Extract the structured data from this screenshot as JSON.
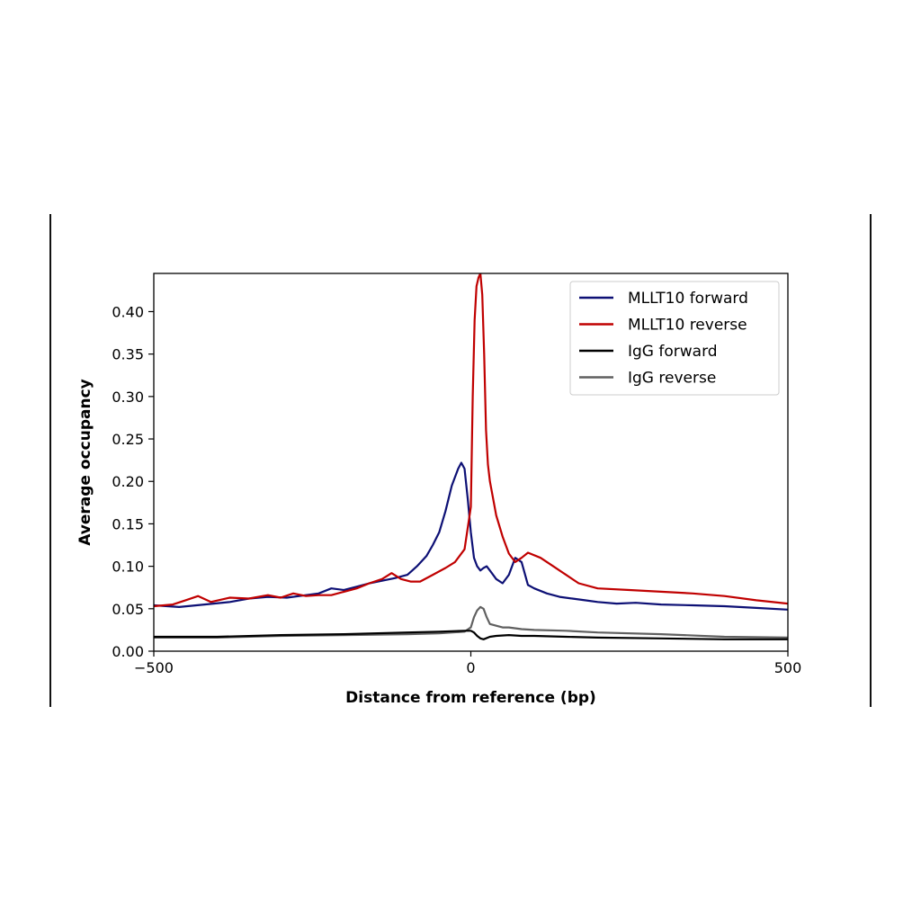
{
  "chart_data": {
    "type": "line",
    "title": "",
    "xlabel": "Distance from reference (bp)",
    "ylabel": "Average occupancy",
    "xlim": [
      -500,
      500
    ],
    "ylim": [
      0,
      0.445
    ],
    "x_ticks": [
      -500,
      0,
      500
    ],
    "x_tick_labels": [
      "−500",
      "0",
      "500"
    ],
    "y_ticks": [
      0.0,
      0.05,
      0.1,
      0.15,
      0.2,
      0.25,
      0.3,
      0.35,
      0.4
    ],
    "y_tick_labels": [
      "0.00",
      "0.05",
      "0.10",
      "0.15",
      "0.20",
      "0.25",
      "0.30",
      "0.35",
      "0.40"
    ],
    "grid": false,
    "legend_position": "top-right",
    "series": [
      {
        "name": "MLLT10 forward",
        "color": "#0d1075",
        "x": [
          -500,
          -460,
          -420,
          -380,
          -350,
          -320,
          -290,
          -260,
          -240,
          -220,
          -200,
          -180,
          -160,
          -140,
          -120,
          -100,
          -85,
          -70,
          -60,
          -50,
          -40,
          -30,
          -20,
          -15,
          -10,
          -5,
          0,
          5,
          10,
          15,
          20,
          25,
          30,
          40,
          50,
          60,
          70,
          80,
          90,
          100,
          120,
          140,
          160,
          180,
          200,
          230,
          260,
          300,
          350,
          400,
          450,
          500
        ],
        "y": [
          0.054,
          0.052,
          0.055,
          0.058,
          0.062,
          0.064,
          0.063,
          0.066,
          0.068,
          0.074,
          0.072,
          0.076,
          0.08,
          0.083,
          0.086,
          0.09,
          0.1,
          0.112,
          0.125,
          0.14,
          0.165,
          0.195,
          0.215,
          0.222,
          0.215,
          0.18,
          0.14,
          0.11,
          0.1,
          0.095,
          0.098,
          0.1,
          0.095,
          0.085,
          0.08,
          0.09,
          0.11,
          0.105,
          0.078,
          0.074,
          0.068,
          0.064,
          0.062,
          0.06,
          0.058,
          0.056,
          0.057,
          0.055,
          0.054,
          0.053,
          0.051,
          0.049
        ]
      },
      {
        "name": "MLLT10 reverse",
        "color": "#c00000",
        "x": [
          -500,
          -470,
          -450,
          -430,
          -410,
          -380,
          -350,
          -320,
          -300,
          -280,
          -260,
          -240,
          -220,
          -200,
          -180,
          -160,
          -140,
          -125,
          -110,
          -95,
          -80,
          -60,
          -40,
          -25,
          -10,
          0,
          3,
          6,
          9,
          12,
          15,
          18,
          21,
          24,
          27,
          30,
          35,
          40,
          50,
          60,
          70,
          80,
          90,
          110,
          130,
          150,
          170,
          200,
          250,
          300,
          350,
          400,
          450,
          500
        ],
        "y": [
          0.053,
          0.055,
          0.06,
          0.065,
          0.058,
          0.063,
          0.062,
          0.066,
          0.063,
          0.068,
          0.065,
          0.066,
          0.066,
          0.07,
          0.074,
          0.08,
          0.085,
          0.092,
          0.085,
          0.082,
          0.082,
          0.09,
          0.098,
          0.105,
          0.12,
          0.17,
          0.3,
          0.39,
          0.43,
          0.44,
          0.445,
          0.42,
          0.35,
          0.26,
          0.22,
          0.2,
          0.18,
          0.16,
          0.135,
          0.115,
          0.105,
          0.11,
          0.116,
          0.11,
          0.1,
          0.09,
          0.08,
          0.074,
          0.072,
          0.07,
          0.068,
          0.065,
          0.06,
          0.056
        ]
      },
      {
        "name": "IgG forward",
        "color": "#000000",
        "x": [
          -500,
          -400,
          -300,
          -200,
          -100,
          -50,
          -10,
          0,
          5,
          10,
          15,
          20,
          30,
          40,
          60,
          80,
          100,
          150,
          200,
          300,
          400,
          500
        ],
        "y": [
          0.017,
          0.017,
          0.019,
          0.02,
          0.022,
          0.023,
          0.024,
          0.024,
          0.022,
          0.018,
          0.015,
          0.014,
          0.017,
          0.018,
          0.019,
          0.018,
          0.018,
          0.017,
          0.016,
          0.015,
          0.014,
          0.014
        ]
      },
      {
        "name": "IgG reverse",
        "color": "#606060",
        "x": [
          -500,
          -400,
          -300,
          -200,
          -100,
          -50,
          -10,
          0,
          5,
          10,
          15,
          20,
          25,
          30,
          40,
          50,
          60,
          80,
          100,
          150,
          200,
          300,
          400,
          500
        ],
        "y": [
          0.016,
          0.016,
          0.018,
          0.019,
          0.02,
          0.021,
          0.023,
          0.028,
          0.04,
          0.048,
          0.052,
          0.05,
          0.04,
          0.032,
          0.03,
          0.028,
          0.028,
          0.026,
          0.025,
          0.024,
          0.022,
          0.02,
          0.017,
          0.016
        ]
      }
    ]
  }
}
